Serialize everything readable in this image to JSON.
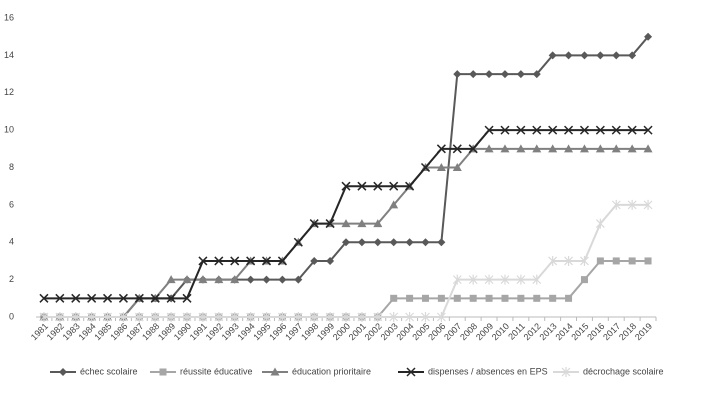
{
  "chart_data": {
    "type": "line",
    "categories": [
      "1981",
      "1982",
      "1983",
      "1984",
      "1985",
      "1986",
      "1987",
      "1988",
      "1989",
      "1990",
      "1991",
      "1992",
      "1993",
      "1994",
      "1995",
      "1996",
      "1997",
      "1998",
      "1999",
      "2000",
      "2001",
      "2002",
      "2003",
      "2004",
      "2005",
      "2006",
      "2007",
      "2008",
      "2009",
      "2010",
      "2011",
      "2012",
      "2013",
      "2014",
      "2015",
      "2016",
      "2017",
      "2018",
      "2019"
    ],
    "series": [
      {
        "name": "échec scolaire",
        "color": "#595959",
        "marker": "diamond",
        "values": [
          0,
          0,
          0,
          0,
          0,
          0,
          1,
          1,
          1,
          2,
          2,
          2,
          2,
          2,
          2,
          2,
          2,
          3,
          3,
          4,
          4,
          4,
          4,
          4,
          4,
          4,
          13,
          13,
          13,
          13,
          13,
          13,
          14,
          14,
          14,
          14,
          14,
          14,
          15
        ]
      },
      {
        "name": "réussite éducative",
        "color": "#a6a6a6",
        "marker": "square",
        "values": [
          0,
          0,
          0,
          0,
          0,
          0,
          0,
          0,
          0,
          0,
          0,
          0,
          0,
          0,
          0,
          0,
          0,
          0,
          0,
          0,
          0,
          0,
          1,
          1,
          1,
          1,
          1,
          1,
          1,
          1,
          1,
          1,
          1,
          1,
          2,
          3,
          3,
          3,
          3
        ]
      },
      {
        "name": "éducation prioritaire",
        "color": "#808080",
        "marker": "triangle",
        "values": [
          0,
          0,
          0,
          0,
          0,
          0,
          1,
          1,
          2,
          2,
          2,
          2,
          2,
          3,
          3,
          3,
          4,
          5,
          5,
          5,
          5,
          5,
          6,
          7,
          8,
          8,
          8,
          9,
          9,
          9,
          9,
          9,
          9,
          9,
          9,
          9,
          9,
          9,
          9
        ]
      },
      {
        "name": "dispenses / absences en EPS",
        "color": "#262626",
        "marker": "x",
        "values": [
          1,
          1,
          1,
          1,
          1,
          1,
          1,
          1,
          1,
          1,
          3,
          3,
          3,
          3,
          3,
          3,
          4,
          5,
          5,
          7,
          7,
          7,
          7,
          7,
          8,
          9,
          9,
          9,
          10,
          10,
          10,
          10,
          10,
          10,
          10,
          10,
          10,
          10,
          10
        ]
      },
      {
        "name": "décrochage scolaire",
        "color": "#d9d9d9",
        "marker": "star",
        "values": [
          0,
          0,
          0,
          0,
          0,
          0,
          0,
          0,
          0,
          0,
          0,
          0,
          0,
          0,
          0,
          0,
          0,
          0,
          0,
          0,
          0,
          0,
          0,
          0,
          0,
          0,
          2,
          2,
          2,
          2,
          2,
          2,
          3,
          3,
          3,
          5,
          6,
          6,
          6
        ]
      }
    ],
    "ylim": [
      0,
      16
    ],
    "yticks": [
      0,
      2,
      4,
      6,
      8,
      10,
      12,
      14,
      16
    ],
    "grid": false,
    "legend": "bottom"
  }
}
